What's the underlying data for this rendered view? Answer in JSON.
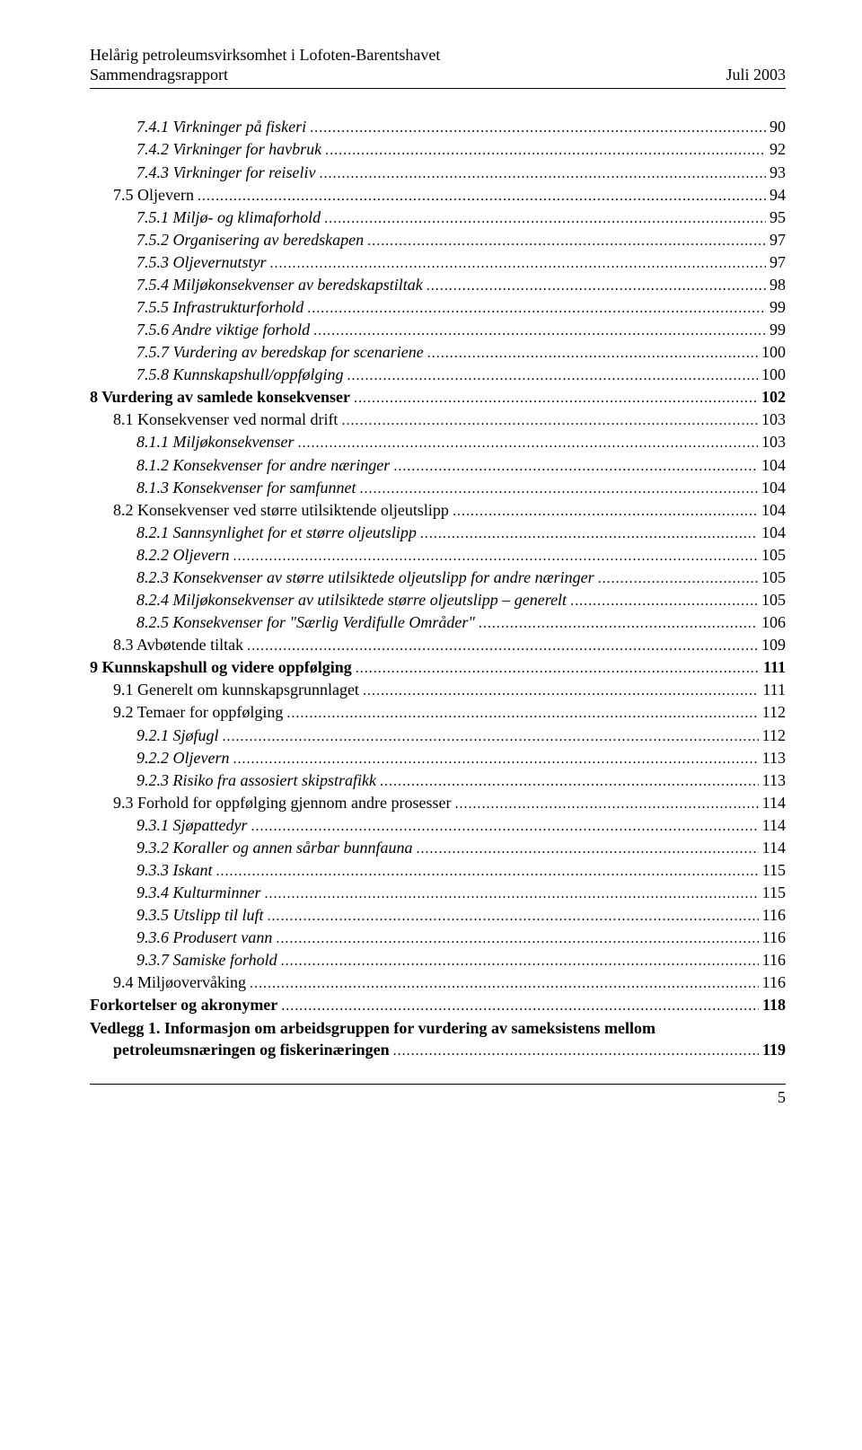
{
  "header": {
    "line1": "Helårig petroleumsvirksomhet i Lofoten-Barentshavet",
    "line2_left": "Sammendragsrapport",
    "line2_right": "Juli 2003"
  },
  "toc": [
    {
      "indent": 2,
      "style": "italic",
      "label": "7.4.1 Virkninger på fiskeri",
      "page": "90"
    },
    {
      "indent": 2,
      "style": "italic",
      "label": "7.4.2 Virkninger for havbruk",
      "page": "92"
    },
    {
      "indent": 2,
      "style": "italic",
      "label": "7.4.3 Virkninger for reiseliv",
      "page": "93"
    },
    {
      "indent": 1,
      "style": "normal",
      "label": "7.5 Oljevern",
      "page": "94"
    },
    {
      "indent": 2,
      "style": "italic",
      "label": "7.5.1 Miljø- og klimaforhold",
      "page": "95"
    },
    {
      "indent": 2,
      "style": "italic",
      "label": "7.5.2 Organisering av beredskapen",
      "page": "97"
    },
    {
      "indent": 2,
      "style": "italic",
      "label": "7.5.3 Oljevernutstyr",
      "page": "97"
    },
    {
      "indent": 2,
      "style": "italic",
      "label": "7.5.4 Miljøkonsekvenser av beredskapstiltak",
      "page": "98"
    },
    {
      "indent": 2,
      "style": "italic",
      "label": "7.5.5 Infrastrukturforhold",
      "page": "99"
    },
    {
      "indent": 2,
      "style": "italic",
      "label": "7.5.6 Andre viktige forhold",
      "page": "99"
    },
    {
      "indent": 2,
      "style": "italic",
      "label": "7.5.7 Vurdering av beredskap for scenariene",
      "page": "100"
    },
    {
      "indent": 2,
      "style": "italic",
      "label": "7.5.8 Kunnskapshull/oppfølging",
      "page": "100"
    },
    {
      "indent": 0,
      "style": "bold",
      "label": "8 Vurdering av samlede konsekvenser",
      "page": "102"
    },
    {
      "indent": 1,
      "style": "normal",
      "label": "8.1 Konsekvenser ved normal drift",
      "page": "103"
    },
    {
      "indent": 2,
      "style": "italic",
      "label": "8.1.1 Miljøkonsekvenser",
      "page": "103"
    },
    {
      "indent": 2,
      "style": "italic",
      "label": "8.1.2 Konsekvenser for andre næringer",
      "page": "104"
    },
    {
      "indent": 2,
      "style": "italic",
      "label": "8.1.3 Konsekvenser for samfunnet",
      "page": "104"
    },
    {
      "indent": 1,
      "style": "normal",
      "label": "8.2 Konsekvenser ved større utilsiktende oljeutslipp",
      "page": "104"
    },
    {
      "indent": 2,
      "style": "italic",
      "label": "8.2.1 Sannsynlighet for et større oljeutslipp",
      "page": "104"
    },
    {
      "indent": 2,
      "style": "italic",
      "label": "8.2.2 Oljevern",
      "page": "105"
    },
    {
      "indent": 2,
      "style": "italic",
      "label": "8.2.3 Konsekvenser av større utilsiktede oljeutslipp for andre næringer",
      "page": "105"
    },
    {
      "indent": 2,
      "style": "italic",
      "label": "8.2.4 Miljøkonsekvenser av utilsiktede større oljeutslipp – generelt",
      "page": "105"
    },
    {
      "indent": 2,
      "style": "italic",
      "label": "8.2.5 Konsekvenser for \"Særlig Verdifulle Områder\"",
      "page": "106"
    },
    {
      "indent": 1,
      "style": "normal",
      "label": "8.3 Avbøtende tiltak",
      "page": "109"
    },
    {
      "indent": 0,
      "style": "bold",
      "label": "9 Kunnskapshull og videre oppfølging",
      "page": "111"
    },
    {
      "indent": 1,
      "style": "normal",
      "label": "9.1 Generelt om kunnskapsgrunnlaget",
      "page": "111"
    },
    {
      "indent": 1,
      "style": "normal",
      "label": "9.2 Temaer for oppfølging",
      "page": "112"
    },
    {
      "indent": 2,
      "style": "italic",
      "label": "9.2.1 Sjøfugl",
      "page": "112"
    },
    {
      "indent": 2,
      "style": "italic",
      "label": "9.2.2 Oljevern",
      "page": "113"
    },
    {
      "indent": 2,
      "style": "italic",
      "label": "9.2.3 Risiko fra assosiert skipstrafikk",
      "page": "113"
    },
    {
      "indent": 1,
      "style": "normal",
      "label": "9.3 Forhold for oppfølging gjennom andre prosesser",
      "page": "114"
    },
    {
      "indent": 2,
      "style": "italic",
      "label": "9.3.1 Sjøpattedyr",
      "page": "114"
    },
    {
      "indent": 2,
      "style": "italic",
      "label": "9.3.2 Koraller og annen sårbar bunnfauna",
      "page": "114"
    },
    {
      "indent": 2,
      "style": "italic",
      "label": "9.3.3 Iskant ",
      "page": "115"
    },
    {
      "indent": 2,
      "style": "italic",
      "label": "9.3.4 Kulturminner",
      "page": "115"
    },
    {
      "indent": 2,
      "style": "italic",
      "label": "9.3.5 Utslipp til luft",
      "page": "116"
    },
    {
      "indent": 2,
      "style": "italic",
      "label": "9.3.6 Produsert vann",
      "page": "116"
    },
    {
      "indent": 2,
      "style": "italic",
      "label": "9.3.7 Samiske forhold",
      "page": "116"
    },
    {
      "indent": 1,
      "style": "normal",
      "label": "9.4 Miljøovervåking",
      "page": "116"
    },
    {
      "indent": 0,
      "style": "bold",
      "label": "Forkortelser og akronymer",
      "page": "118"
    },
    {
      "indent": 0,
      "style": "bold",
      "label": "Vedlegg 1. Informasjon om arbeidsgruppen for vurdering av sameksistens mellom",
      "page": null
    },
    {
      "indent": 1,
      "style": "bold",
      "label": "petroleumsnæringen og fiskerinæringen",
      "page": "119"
    }
  ],
  "footer": {
    "page_number": "5"
  }
}
